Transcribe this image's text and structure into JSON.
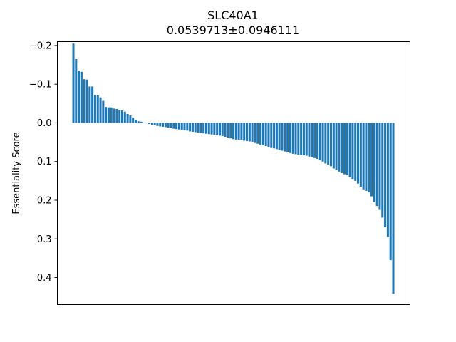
{
  "chart_data": {
    "type": "bar",
    "title": "SLC40A1",
    "subtitle": "0.0539713±0.0946111",
    "xlabel": "",
    "ylabel": "Essentiality Score",
    "y_inverted": true,
    "ylim": [
      -0.21,
      0.47
    ],
    "yticks": [
      -0.2,
      -0.1,
      0.0,
      0.1,
      0.2,
      0.3,
      0.4
    ],
    "ytick_labels": [
      "−0.2",
      "−0.1",
      "0.0",
      "0.1",
      "0.2",
      "0.3",
      "0.4"
    ],
    "grid": false,
    "bar_color": "#1f77b4",
    "values": [
      -0.205,
      -0.165,
      -0.135,
      -0.132,
      -0.113,
      -0.112,
      -0.094,
      -0.094,
      -0.072,
      -0.071,
      -0.066,
      -0.057,
      -0.041,
      -0.04,
      -0.04,
      -0.037,
      -0.036,
      -0.033,
      -0.032,
      -0.029,
      -0.023,
      -0.019,
      -0.014,
      -0.008,
      -0.004,
      -0.003,
      -0.001,
      0.001,
      0.003,
      0.005,
      0.006,
      0.008,
      0.009,
      0.01,
      0.011,
      0.012,
      0.013,
      0.015,
      0.016,
      0.017,
      0.018,
      0.019,
      0.02,
      0.022,
      0.023,
      0.024,
      0.025,
      0.026,
      0.027,
      0.028,
      0.029,
      0.03,
      0.031,
      0.032,
      0.033,
      0.034,
      0.036,
      0.038,
      0.04,
      0.042,
      0.043,
      0.044,
      0.045,
      0.046,
      0.047,
      0.048,
      0.05,
      0.052,
      0.054,
      0.056,
      0.058,
      0.06,
      0.063,
      0.065,
      0.066,
      0.068,
      0.07,
      0.072,
      0.074,
      0.076,
      0.078,
      0.08,
      0.081,
      0.082,
      0.083,
      0.084,
      0.085,
      0.087,
      0.089,
      0.091,
      0.093,
      0.096,
      0.1,
      0.105,
      0.108,
      0.112,
      0.118,
      0.122,
      0.126,
      0.13,
      0.133,
      0.135,
      0.14,
      0.145,
      0.15,
      0.157,
      0.165,
      0.172,
      0.176,
      0.18,
      0.19,
      0.205,
      0.215,
      0.225,
      0.245,
      0.27,
      0.295,
      0.355,
      0.442
    ]
  }
}
